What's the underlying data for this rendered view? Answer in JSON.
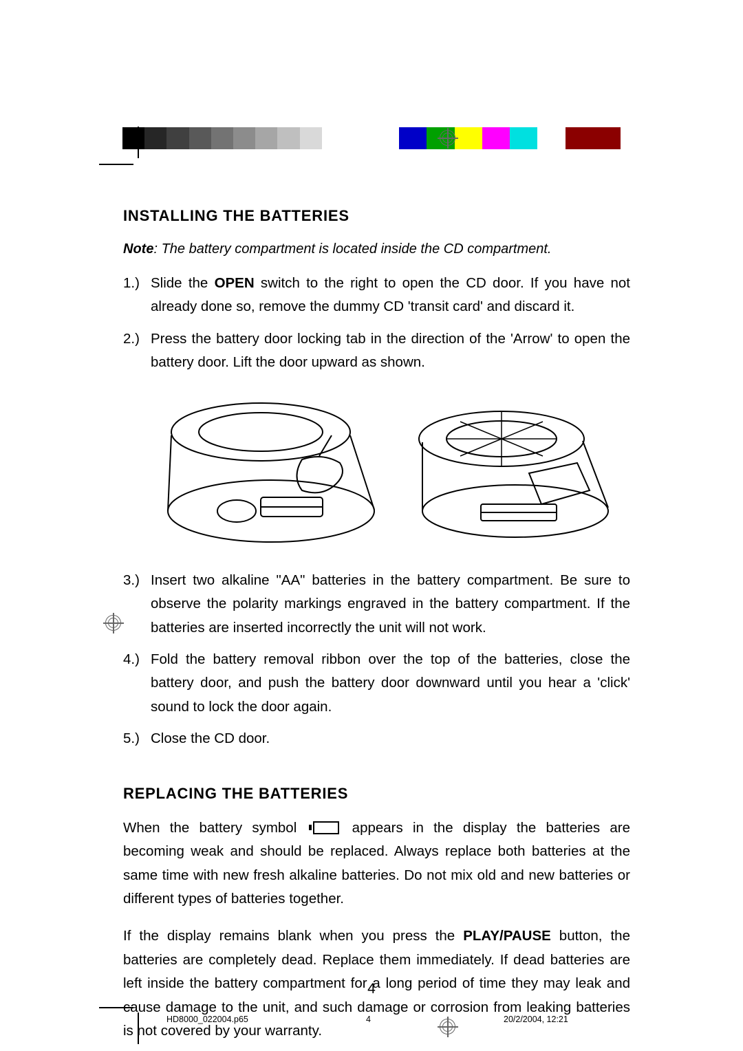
{
  "colorbar": {
    "left": [
      "#000000",
      "#262626",
      "#404040",
      "#595959",
      "#737373",
      "#8c8c8c",
      "#a6a6a6",
      "#bfbfbf",
      "#d9d9d9",
      "#ffffff"
    ],
    "right": [
      "#0000c8",
      "#00a000",
      "#ffff00",
      "#ff00ff",
      "#00e0e0",
      "#ffffff",
      "#8b0000",
      "#8b0000"
    ]
  },
  "section1": {
    "heading": "INSTALLING THE BATTERIES",
    "noteLabel": "Note",
    "noteText": ": The battery compartment is located inside the CD compartment.",
    "steps": [
      {
        "n": "1.)",
        "pre": "Slide the ",
        "bold": "OPEN",
        "post": " switch to the right to open the CD door. If you have not already done so, remove the dummy CD 'transit card' and discard it."
      },
      {
        "n": "2.)",
        "text": "Press the battery door locking tab in the direction of the 'Arrow' to open the battery door. Lift the door upward as shown."
      }
    ],
    "steps2": [
      {
        "n": "3.)",
        "text": "Insert two alkaline \"AA\" batteries in the battery compartment. Be sure to observe the polarity markings engraved in the battery compartment. If the batteries are inserted incorrectly the unit will not work."
      },
      {
        "n": "4.)",
        "text": "Fold the battery removal ribbon over the top of the batteries, close the battery door, and push the battery door downward until you hear a 'click' sound to lock the door again."
      },
      {
        "n": "5.)",
        "text": "Close the CD door."
      }
    ]
  },
  "section2": {
    "heading": "REPLACING THE BATTERIES",
    "p1_pre": "When the battery symbol ",
    "p1_post": " appears in the display the batteries are becoming weak and should be replaced. Always replace both batteries at the same time with new fresh alkaline batteries. Do not mix old and new batteries or different types of batteries together.",
    "p2_pre": "If the display remains blank when you press the ",
    "p2_bold": "PLAY/PAUSE",
    "p2_post": " button, the batteries are completely dead. Replace them immediately. If dead batteries are left inside the battery compartment for a long period of time they may leak and cause damage to the unit, and such damage or corrosion from leaking batteries is not covered by your warranty."
  },
  "pagenum": "4",
  "footer": {
    "file": "HD8000_022004.p65",
    "pnum": "4",
    "date": "20/2/2004, 12:21"
  }
}
